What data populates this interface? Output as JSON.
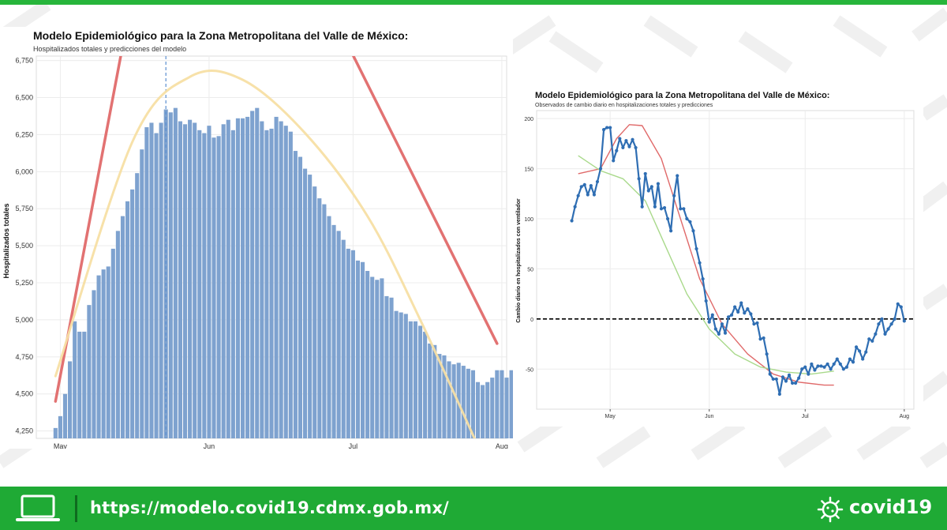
{
  "colors": {
    "brand_green": "#1faa35",
    "bar_fill": "#7ea2cf",
    "red_line": "#e06a6a",
    "yellow_line": "#f7dfa4",
    "green_line": "#a9d98b",
    "observed_line": "#2f6eb3"
  },
  "footer": {
    "url": "https://modelo.covid19.cdmx.gob.mx/",
    "brand": "covid19",
    "laptop_icon": "laptop-icon",
    "logo_icon": "virus-logo-icon"
  },
  "chart_data": [
    {
      "type": "bar",
      "title": "Modelo Epidemiológico para la Zona Metropolitana del Valle de México:",
      "subtitle": "Hospitalizados totales y predicciones del modelo",
      "ylabel": "Hospitalizados totales",
      "xlabel": "",
      "ylim": [
        4200,
        6780
      ],
      "yticks": [
        4250,
        4500,
        4750,
        5000,
        5250,
        5500,
        5750,
        6000,
        6250,
        6500,
        6750
      ],
      "ytick_labels": [
        "4,250",
        "4,500",
        "4,750",
        "5,000",
        "5,250",
        "5,500",
        "5,750",
        "6,000",
        "6,250",
        "6,500",
        "6,750"
      ],
      "x_start": "2020-04-30",
      "xlim": [
        "2020-04-26",
        "2020-08-02"
      ],
      "xticks": [
        "2020-05-01",
        "2020-06-01",
        "2020-07-01",
        "2020-08-01"
      ],
      "xtick_labels": [
        "May",
        "Jun",
        "Jul",
        "Aug"
      ],
      "grid": true,
      "values": [
        4270,
        4350,
        4500,
        4720,
        4990,
        4920,
        4920,
        5100,
        5200,
        5300,
        5340,
        5360,
        5480,
        5600,
        5700,
        5800,
        5880,
        5990,
        6150,
        6300,
        6330,
        6260,
        6330,
        6420,
        6400,
        6430,
        6340,
        6320,
        6350,
        6330,
        6280,
        6260,
        6310,
        6230,
        6240,
        6320,
        6350,
        6280,
        6360,
        6360,
        6370,
        6410,
        6430,
        6340,
        6280,
        6290,
        6370,
        6340,
        6310,
        6270,
        6140,
        6100,
        6020,
        5980,
        5900,
        5820,
        5780,
        5700,
        5640,
        5600,
        5540,
        5480,
        5470,
        5400,
        5390,
        5330,
        5290,
        5270,
        5280,
        5160,
        5150,
        5060,
        5050,
        5040,
        4990,
        4990,
        4960,
        4920,
        4840,
        4830,
        4770,
        4760,
        4720,
        4700,
        4710,
        4690,
        4670,
        4660,
        4580,
        4560,
        4580,
        4610,
        4660,
        4660,
        4610,
        4660,
        4670,
        4680,
        4700,
        4600
      ],
      "reference_line": {
        "x": "2020-05-23",
        "style": "dashed",
        "color": "#5b8fd0"
      },
      "series": [
        {
          "color": "#e06a6a",
          "x": [
            "2020-04-30",
            "2020-05-14",
            "2020-06-30",
            "2020-07-31"
          ],
          "y": [
            4450,
            6850,
            6850,
            4840
          ]
        },
        {
          "color": "#f7dfa4",
          "x": [
            "2020-04-30",
            "2020-05-16",
            "2020-05-28",
            "2020-06-08",
            "2020-06-21",
            "2020-07-04",
            "2020-07-15",
            "2020-07-27"
          ],
          "y": [
            4620,
            6200,
            6640,
            6620,
            6260,
            5700,
            5000,
            4150
          ]
        }
      ]
    },
    {
      "type": "line",
      "title": "Modelo Epidemiológico para la Zona Metropolitana del Valle de México:",
      "subtitle": "Observados de cambio diario en hospitalizaciones totales y predicciones",
      "ylabel": "Cambio diario en hospitalizados con ventilador",
      "xlabel": "",
      "ylim": [
        -90,
        208
      ],
      "yticks": [
        -50,
        0,
        50,
        100,
        150,
        200
      ],
      "ytick_labels": [
        "-50",
        "0",
        "50",
        "100",
        "150",
        "200"
      ],
      "xlim": [
        "2020-04-08",
        "2020-08-04"
      ],
      "xticks": [
        "2020-05-01",
        "2020-06-01",
        "2020-07-01",
        "2020-08-01"
      ],
      "xtick_labels": [
        "May",
        "Jun",
        "Jul",
        "Aug"
      ],
      "grid": true,
      "zero_line": {
        "y": 0,
        "style": "dashed",
        "color": "#000000"
      },
      "series": [
        {
          "color": "#e06a6a",
          "x": [
            "2020-04-21",
            "2020-04-28",
            "2020-05-03",
            "2020-05-07",
            "2020-05-11",
            "2020-05-17",
            "2020-05-23",
            "2020-05-29",
            "2020-06-05",
            "2020-06-13",
            "2020-06-21",
            "2020-06-29",
            "2020-07-07",
            "2020-07-10"
          ],
          "y": [
            145,
            150,
            180,
            194,
            193,
            160,
            100,
            40,
            -5,
            -35,
            -55,
            -63,
            -66,
            -66
          ]
        },
        {
          "color": "#a9d98b",
          "x": [
            "2020-04-21",
            "2020-04-28",
            "2020-05-05",
            "2020-05-12",
            "2020-05-18",
            "2020-05-25",
            "2020-06-01",
            "2020-06-09",
            "2020-06-17",
            "2020-06-25",
            "2020-07-03",
            "2020-07-10"
          ],
          "y": [
            163,
            148,
            140,
            118,
            75,
            25,
            -10,
            -35,
            -48,
            -53,
            -55,
            -52
          ]
        },
        {
          "color": "#2f6eb3",
          "markers": true,
          "x_start": "2020-04-19",
          "y": [
            98,
            112,
            123,
            132,
            134,
            124,
            133,
            124,
            137,
            150,
            189,
            191,
            191,
            158,
            168,
            180,
            171,
            178,
            172,
            179,
            171,
            140,
            112,
            145,
            128,
            132,
            112,
            135,
            110,
            111,
            100,
            88,
            123,
            143,
            110,
            110,
            100,
            97,
            88,
            70,
            56,
            40,
            18,
            -3,
            4,
            -10,
            -15,
            -5,
            -14,
            2,
            4,
            12,
            7,
            16,
            6,
            10,
            5,
            -5,
            -4,
            -20,
            -19,
            -35,
            -55,
            -60,
            -60,
            -75,
            -58,
            -62,
            -56,
            -64,
            -64,
            -59,
            -50,
            -48,
            -55,
            -45,
            -51,
            -47,
            -47,
            -48,
            -45,
            -50,
            -45,
            -40,
            -45,
            -50,
            -48,
            -40,
            -43,
            -28,
            -32,
            -40,
            -33,
            -20,
            -22,
            -15,
            -5,
            0,
            -15,
            -10,
            -5,
            0,
            15,
            12,
            -2
          ]
        }
      ]
    }
  ]
}
